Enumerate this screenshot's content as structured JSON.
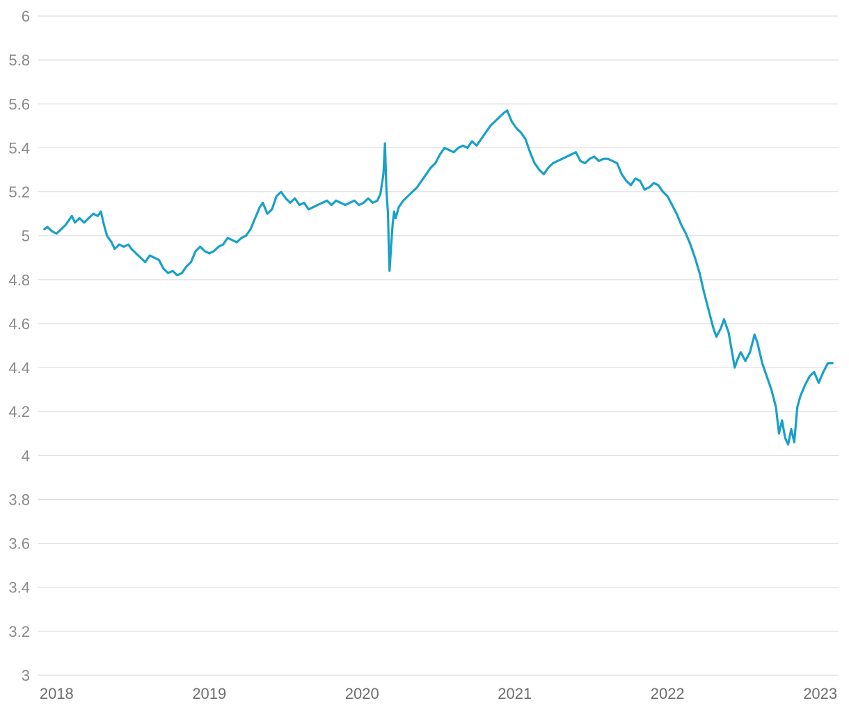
{
  "chart_data": {
    "type": "line",
    "title": "",
    "xlabel": "",
    "ylabel": "",
    "ylim": [
      3,
      6
    ],
    "xlim": [
      2017.88,
      2023.12
    ],
    "grid": true,
    "y_ticks": [
      "6",
      "5.8",
      "5.6",
      "5.4",
      "5.2",
      "5",
      "4.8",
      "4.6",
      "4.4",
      "4.2",
      "4",
      "3.8",
      "3.6",
      "3.4",
      "3.2",
      "3"
    ],
    "x_ticks": [
      "2018",
      "2019",
      "2020",
      "2021",
      "2022",
      "2023"
    ],
    "colors": {
      "line": "#19a0c8",
      "grid": "#dedede",
      "tick_label": "#8a8a8a"
    },
    "series": [
      {
        "name": "",
        "points": [
          [
            2017.92,
            5.03
          ],
          [
            2017.94,
            5.04
          ],
          [
            2017.97,
            5.02
          ],
          [
            2018.0,
            5.01
          ],
          [
            2018.03,
            5.03
          ],
          [
            2018.06,
            5.05
          ],
          [
            2018.08,
            5.07
          ],
          [
            2018.1,
            5.09
          ],
          [
            2018.12,
            5.06
          ],
          [
            2018.15,
            5.08
          ],
          [
            2018.18,
            5.06
          ],
          [
            2018.21,
            5.08
          ],
          [
            2018.24,
            5.1
          ],
          [
            2018.27,
            5.09
          ],
          [
            2018.29,
            5.11
          ],
          [
            2018.31,
            5.05
          ],
          [
            2018.33,
            5.0
          ],
          [
            2018.36,
            4.97
          ],
          [
            2018.38,
            4.94
          ],
          [
            2018.41,
            4.96
          ],
          [
            2018.44,
            4.95
          ],
          [
            2018.47,
            4.96
          ],
          [
            2018.49,
            4.94
          ],
          [
            2018.52,
            4.92
          ],
          [
            2018.55,
            4.9
          ],
          [
            2018.58,
            4.88
          ],
          [
            2018.61,
            4.91
          ],
          [
            2018.64,
            4.9
          ],
          [
            2018.67,
            4.89
          ],
          [
            2018.7,
            4.85
          ],
          [
            2018.73,
            4.83
          ],
          [
            2018.76,
            4.84
          ],
          [
            2018.79,
            4.82
          ],
          [
            2018.82,
            4.83
          ],
          [
            2018.85,
            4.86
          ],
          [
            2018.88,
            4.88
          ],
          [
            2018.91,
            4.93
          ],
          [
            2018.94,
            4.95
          ],
          [
            2018.97,
            4.93
          ],
          [
            2019.0,
            4.92
          ],
          [
            2019.03,
            4.93
          ],
          [
            2019.06,
            4.95
          ],
          [
            2019.09,
            4.96
          ],
          [
            2019.12,
            4.99
          ],
          [
            2019.15,
            4.98
          ],
          [
            2019.18,
            4.97
          ],
          [
            2019.21,
            4.99
          ],
          [
            2019.24,
            5.0
          ],
          [
            2019.27,
            5.03
          ],
          [
            2019.3,
            5.08
          ],
          [
            2019.33,
            5.13
          ],
          [
            2019.35,
            5.15
          ],
          [
            2019.38,
            5.1
          ],
          [
            2019.41,
            5.12
          ],
          [
            2019.44,
            5.18
          ],
          [
            2019.47,
            5.2
          ],
          [
            2019.5,
            5.17
          ],
          [
            2019.53,
            5.15
          ],
          [
            2019.56,
            5.17
          ],
          [
            2019.59,
            5.14
          ],
          [
            2019.62,
            5.15
          ],
          [
            2019.65,
            5.12
          ],
          [
            2019.68,
            5.13
          ],
          [
            2019.71,
            5.14
          ],
          [
            2019.74,
            5.15
          ],
          [
            2019.77,
            5.16
          ],
          [
            2019.8,
            5.14
          ],
          [
            2019.83,
            5.16
          ],
          [
            2019.86,
            5.15
          ],
          [
            2019.89,
            5.14
          ],
          [
            2019.92,
            5.15
          ],
          [
            2019.95,
            5.16
          ],
          [
            2019.98,
            5.14
          ],
          [
            2020.01,
            5.15
          ],
          [
            2020.04,
            5.17
          ],
          [
            2020.07,
            5.15
          ],
          [
            2020.1,
            5.16
          ],
          [
            2020.12,
            5.19
          ],
          [
            2020.14,
            5.28
          ],
          [
            2020.15,
            5.42
          ],
          [
            2020.16,
            5.2
          ],
          [
            2020.17,
            5.1
          ],
          [
            2020.175,
            4.95
          ],
          [
            2020.18,
            4.84
          ],
          [
            2020.19,
            4.95
          ],
          [
            2020.2,
            5.05
          ],
          [
            2020.21,
            5.11
          ],
          [
            2020.22,
            5.08
          ],
          [
            2020.24,
            5.13
          ],
          [
            2020.27,
            5.16
          ],
          [
            2020.3,
            5.18
          ],
          [
            2020.33,
            5.2
          ],
          [
            2020.36,
            5.22
          ],
          [
            2020.39,
            5.25
          ],
          [
            2020.42,
            5.28
          ],
          [
            2020.45,
            5.31
          ],
          [
            2020.48,
            5.33
          ],
          [
            2020.51,
            5.37
          ],
          [
            2020.54,
            5.4
          ],
          [
            2020.57,
            5.39
          ],
          [
            2020.6,
            5.38
          ],
          [
            2020.63,
            5.4
          ],
          [
            2020.66,
            5.41
          ],
          [
            2020.69,
            5.4
          ],
          [
            2020.72,
            5.43
          ],
          [
            2020.75,
            5.41
          ],
          [
            2020.78,
            5.44
          ],
          [
            2020.81,
            5.47
          ],
          [
            2020.84,
            5.5
          ],
          [
            2020.87,
            5.52
          ],
          [
            2020.9,
            5.54
          ],
          [
            2020.93,
            5.56
          ],
          [
            2020.95,
            5.57
          ],
          [
            2020.98,
            5.52
          ],
          [
            2021.01,
            5.49
          ],
          [
            2021.04,
            5.47
          ],
          [
            2021.07,
            5.44
          ],
          [
            2021.1,
            5.38
          ],
          [
            2021.13,
            5.33
          ],
          [
            2021.16,
            5.3
          ],
          [
            2021.19,
            5.28
          ],
          [
            2021.22,
            5.31
          ],
          [
            2021.25,
            5.33
          ],
          [
            2021.28,
            5.34
          ],
          [
            2021.31,
            5.35
          ],
          [
            2021.34,
            5.36
          ],
          [
            2021.37,
            5.37
          ],
          [
            2021.4,
            5.38
          ],
          [
            2021.43,
            5.34
          ],
          [
            2021.46,
            5.33
          ],
          [
            2021.49,
            5.35
          ],
          [
            2021.52,
            5.36
          ],
          [
            2021.55,
            5.34
          ],
          [
            2021.58,
            5.35
          ],
          [
            2021.61,
            5.35
          ],
          [
            2021.64,
            5.34
          ],
          [
            2021.67,
            5.33
          ],
          [
            2021.7,
            5.28
          ],
          [
            2021.73,
            5.25
          ],
          [
            2021.76,
            5.23
          ],
          [
            2021.79,
            5.26
          ],
          [
            2021.82,
            5.25
          ],
          [
            2021.85,
            5.21
          ],
          [
            2021.88,
            5.22
          ],
          [
            2021.91,
            5.24
          ],
          [
            2021.94,
            5.23
          ],
          [
            2021.97,
            5.2
          ],
          [
            2022.0,
            5.18
          ],
          [
            2022.03,
            5.14
          ],
          [
            2022.06,
            5.1
          ],
          [
            2022.09,
            5.05
          ],
          [
            2022.12,
            5.01
          ],
          [
            2022.15,
            4.96
          ],
          [
            2022.18,
            4.9
          ],
          [
            2022.21,
            4.83
          ],
          [
            2022.24,
            4.74
          ],
          [
            2022.27,
            4.66
          ],
          [
            2022.3,
            4.58
          ],
          [
            2022.32,
            4.54
          ],
          [
            2022.35,
            4.58
          ],
          [
            2022.37,
            4.62
          ],
          [
            2022.4,
            4.56
          ],
          [
            2022.42,
            4.48
          ],
          [
            2022.44,
            4.4
          ],
          [
            2022.46,
            4.44
          ],
          [
            2022.48,
            4.47
          ],
          [
            2022.51,
            4.43
          ],
          [
            2022.54,
            4.47
          ],
          [
            2022.57,
            4.55
          ],
          [
            2022.59,
            4.51
          ],
          [
            2022.62,
            4.42
          ],
          [
            2022.65,
            4.36
          ],
          [
            2022.68,
            4.3
          ],
          [
            2022.71,
            4.22
          ],
          [
            2022.73,
            4.1
          ],
          [
            2022.75,
            4.16
          ],
          [
            2022.77,
            4.08
          ],
          [
            2022.79,
            4.05
          ],
          [
            2022.81,
            4.12
          ],
          [
            2022.83,
            4.06
          ],
          [
            2022.85,
            4.22
          ],
          [
            2022.87,
            4.27
          ],
          [
            2022.9,
            4.32
          ],
          [
            2022.93,
            4.36
          ],
          [
            2022.96,
            4.38
          ],
          [
            2022.99,
            4.33
          ],
          [
            2023.02,
            4.38
          ],
          [
            2023.05,
            4.42
          ],
          [
            2023.08,
            4.42
          ]
        ]
      }
    ]
  }
}
